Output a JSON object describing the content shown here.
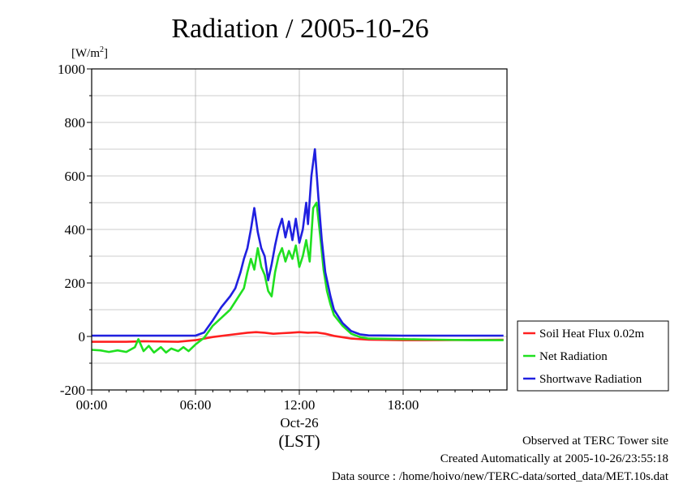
{
  "chart_data": {
    "type": "line",
    "title": "Radiation / 2005-10-26",
    "ylabel_unit": "[W/m",
    "ylabel_sup": "2",
    "ylabel_close": "]",
    "xlabel": "(LST)",
    "date_label": "Oct-26",
    "ylim": [
      -200,
      1000
    ],
    "xlim": [
      0,
      24
    ],
    "yticks": [
      -200,
      0,
      200,
      400,
      600,
      800,
      1000
    ],
    "xticks": [
      {
        "value": 0,
        "label": "00:00"
      },
      {
        "value": 6,
        "label": "06:00"
      },
      {
        "value": 12,
        "label": "12:00"
      },
      {
        "value": 18,
        "label": "18:00"
      }
    ],
    "grid": true,
    "legend_position": "right",
    "series": [
      {
        "name": "Soil Heat Flux 0.02m",
        "color": "#ff2020",
        "points": [
          [
            0,
            -20
          ],
          [
            2,
            -20
          ],
          [
            3,
            -18
          ],
          [
            5,
            -20
          ],
          [
            6,
            -14
          ],
          [
            7,
            -2
          ],
          [
            8,
            6
          ],
          [
            9,
            14
          ],
          [
            9.5,
            16
          ],
          [
            10,
            14
          ],
          [
            10.5,
            10
          ],
          [
            11,
            12
          ],
          [
            11.5,
            14
          ],
          [
            12,
            16
          ],
          [
            12.5,
            14
          ],
          [
            13,
            15
          ],
          [
            13.5,
            10
          ],
          [
            14,
            2
          ],
          [
            15,
            -8
          ],
          [
            16,
            -12
          ],
          [
            18,
            -14
          ],
          [
            20,
            -14
          ],
          [
            22,
            -13
          ],
          [
            23.8,
            -12
          ]
        ]
      },
      {
        "name": "Net Radiation",
        "color": "#20e020",
        "points": [
          [
            0,
            -50
          ],
          [
            0.5,
            -52
          ],
          [
            1,
            -58
          ],
          [
            1.5,
            -52
          ],
          [
            2,
            -58
          ],
          [
            2.5,
            -40
          ],
          [
            2.7,
            -10
          ],
          [
            3,
            -55
          ],
          [
            3.3,
            -35
          ],
          [
            3.6,
            -60
          ],
          [
            4,
            -40
          ],
          [
            4.3,
            -60
          ],
          [
            4.6,
            -45
          ],
          [
            5,
            -55
          ],
          [
            5.3,
            -40
          ],
          [
            5.6,
            -55
          ],
          [
            6,
            -30
          ],
          [
            6.5,
            -5
          ],
          [
            7,
            40
          ],
          [
            7.5,
            70
          ],
          [
            8,
            100
          ],
          [
            8.5,
            150
          ],
          [
            8.8,
            180
          ],
          [
            9,
            240
          ],
          [
            9.2,
            290
          ],
          [
            9.4,
            250
          ],
          [
            9.6,
            330
          ],
          [
            9.8,
            260
          ],
          [
            10,
            230
          ],
          [
            10.2,
            170
          ],
          [
            10.4,
            150
          ],
          [
            10.6,
            240
          ],
          [
            10.8,
            300
          ],
          [
            11,
            330
          ],
          [
            11.2,
            280
          ],
          [
            11.4,
            320
          ],
          [
            11.6,
            290
          ],
          [
            11.8,
            340
          ],
          [
            12,
            260
          ],
          [
            12.2,
            300
          ],
          [
            12.4,
            360
          ],
          [
            12.6,
            280
          ],
          [
            12.8,
            480
          ],
          [
            13,
            500
          ],
          [
            13.2,
            380
          ],
          [
            13.4,
            250
          ],
          [
            13.6,
            170
          ],
          [
            13.8,
            120
          ],
          [
            14,
            80
          ],
          [
            14.5,
            40
          ],
          [
            15,
            10
          ],
          [
            15.5,
            -2
          ],
          [
            16,
            -8
          ],
          [
            18,
            -10
          ],
          [
            20,
            -12
          ],
          [
            22,
            -14
          ],
          [
            23.8,
            -14
          ]
        ]
      },
      {
        "name": "Shortwave Radiation",
        "color": "#2020e0",
        "points": [
          [
            0,
            3
          ],
          [
            3,
            3
          ],
          [
            6,
            3
          ],
          [
            6.5,
            15
          ],
          [
            7,
            60
          ],
          [
            7.5,
            110
          ],
          [
            8,
            150
          ],
          [
            8.3,
            180
          ],
          [
            8.6,
            240
          ],
          [
            8.8,
            290
          ],
          [
            9,
            330
          ],
          [
            9.2,
            400
          ],
          [
            9.4,
            480
          ],
          [
            9.6,
            390
          ],
          [
            9.8,
            330
          ],
          [
            10,
            300
          ],
          [
            10.2,
            210
          ],
          [
            10.4,
            270
          ],
          [
            10.6,
            340
          ],
          [
            10.8,
            400
          ],
          [
            11,
            440
          ],
          [
            11.2,
            370
          ],
          [
            11.4,
            430
          ],
          [
            11.6,
            360
          ],
          [
            11.8,
            440
          ],
          [
            12,
            350
          ],
          [
            12.2,
            400
          ],
          [
            12.4,
            500
          ],
          [
            12.5,
            420
          ],
          [
            12.7,
            600
          ],
          [
            12.9,
            700
          ],
          [
            13.1,
            520
          ],
          [
            13.3,
            360
          ],
          [
            13.5,
            240
          ],
          [
            13.8,
            150
          ],
          [
            14,
            100
          ],
          [
            14.5,
            50
          ],
          [
            15,
            20
          ],
          [
            15.5,
            8
          ],
          [
            16,
            4
          ],
          [
            18,
            3
          ],
          [
            20,
            3
          ],
          [
            22,
            3
          ],
          [
            23.8,
            3
          ]
        ]
      }
    ]
  },
  "legend": [
    {
      "label": "Soil Heat Flux 0.02m",
      "color": "#ff2020"
    },
    {
      "label": "Net Radiation",
      "color": "#20e020"
    },
    {
      "label": "Shortwave Radiation",
      "color": "#2020e0"
    }
  ],
  "footer": {
    "line1": "Observed at TERC Tower site",
    "line2": "Created Automatically at 2005-10-26/23:55:18",
    "line3": "Data source : /home/hoivo/new/TERC-data/sorted_data/MET.10s.dat"
  }
}
